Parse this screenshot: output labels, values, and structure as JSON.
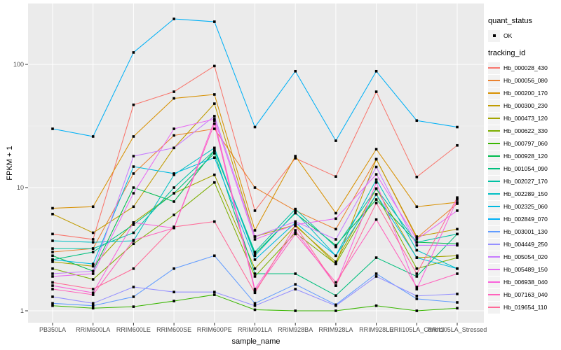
{
  "legend": {
    "quant_status_title": "quant_status",
    "ok_label": "OK",
    "tracking_id_title": "tracking_id"
  },
  "chart_data": {
    "type": "line",
    "title": "",
    "xlabel": "sample_name",
    "ylabel": "FPKM + 1",
    "y_scale": "log10",
    "y_ticks": [
      1,
      10,
      100
    ],
    "y_minor_ticks": [
      3.1623,
      31.623
    ],
    "ylim": [
      0.8,
      310
    ],
    "grid": "on",
    "legend_position": "right",
    "panel_color": "#EBEBEB",
    "grid_color": "#FFFFFF",
    "tick_label_color": "#4D4D4D",
    "marker": {
      "shape": "square",
      "color": "#000000",
      "meaning": "quant_status OK"
    },
    "categories": [
      "PB350LA",
      "RRIM600LA",
      "RRIM600LE",
      "RRIM600SE",
      "RRIM600PE",
      "RRIM901LA",
      "RRIM928BA",
      "RRIM928LA",
      "RRIM928LE",
      "RRII105LA_Control",
      "RRII105LA_Stressed"
    ],
    "series": [
      {
        "name": "Hb_000028_430",
        "color": "#F8766D",
        "values": [
          4.2,
          3.8,
          47,
          60,
          97,
          6.5,
          17.3,
          12.3,
          60,
          12.2,
          22
        ]
      },
      {
        "name": "Hb_000056_080",
        "color": "#EA8331",
        "values": [
          3.0,
          3.2,
          13,
          26.5,
          30,
          10,
          6.5,
          4.6,
          17,
          3.9,
          7.4
        ]
      },
      {
        "name": "Hb_000200_170",
        "color": "#D89000",
        "values": [
          6.8,
          7.0,
          26,
          53,
          57,
          4.5,
          18,
          6.2,
          20.5,
          7.0,
          7.6
        ]
      },
      {
        "name": "Hb_000300_230",
        "color": "#C09B00",
        "values": [
          6.1,
          4.3,
          7.0,
          21,
          48,
          4.0,
          5.0,
          2.4,
          17,
          4.0,
          4.6
        ]
      },
      {
        "name": "Hb_000473_120",
        "color": "#A3A500",
        "values": [
          2.5,
          2.3,
          5.2,
          9.0,
          12.7,
          2.2,
          4.9,
          2.5,
          9.8,
          2.7,
          2.8
        ]
      },
      {
        "name": "Hb_000622_330",
        "color": "#7CAE00",
        "values": [
          2.2,
          1.8,
          3.5,
          6.0,
          11,
          1.9,
          4.3,
          2.4,
          8.8,
          2.2,
          2.7
        ]
      },
      {
        "name": "Hb_000797_060",
        "color": "#39B600",
        "values": [
          1.1,
          1.05,
          1.08,
          1.2,
          1.35,
          1.02,
          1.0,
          1.0,
          1.1,
          1.0,
          1.05
        ]
      },
      {
        "name": "Hb_000928_120",
        "color": "#00BB4E",
        "values": [
          2.8,
          2.1,
          10,
          7.7,
          20,
          2.9,
          6.2,
          3.4,
          8.0,
          3.6,
          3.5
        ]
      },
      {
        "name": "Hb_001054_090",
        "color": "#00BF7D",
        "values": [
          2.6,
          3.0,
          5.0,
          9.0,
          19,
          2.0,
          2.0,
          1.33,
          2.7,
          1.9,
          4.2
        ]
      },
      {
        "name": "Hb_002027_170",
        "color": "#00C1A3",
        "values": [
          3.2,
          3.2,
          4.3,
          10,
          20,
          3.0,
          6.7,
          3.3,
          9.8,
          3.6,
          4.2
        ]
      },
      {
        "name": "Hb_002289_150",
        "color": "#00BFC4",
        "values": [
          3.7,
          3.6,
          3.7,
          12.7,
          21,
          2.8,
          6.3,
          2.8,
          11.6,
          3.1,
          2.2
        ]
      },
      {
        "name": "Hb_002325_060",
        "color": "#00BAE0",
        "values": [
          2.6,
          2.4,
          14.8,
          13,
          17.5,
          2.6,
          5.2,
          2.8,
          8.8,
          2.7,
          2.2
        ]
      },
      {
        "name": "Hb_002849_070",
        "color": "#00B0F6",
        "values": [
          30,
          26,
          125,
          234,
          222,
          31,
          88,
          24,
          88,
          35,
          31
        ]
      },
      {
        "name": "Hb_003001_130",
        "color": "#619CFF",
        "values": [
          1.15,
          1.1,
          1.3,
          2.2,
          2.8,
          1.15,
          1.64,
          1.12,
          2.0,
          1.25,
          1.17
        ]
      },
      {
        "name": "Hb_004449_250",
        "color": "#9590FF",
        "values": [
          1.3,
          1.15,
          1.56,
          1.42,
          1.42,
          1.1,
          1.5,
          1.1,
          1.9,
          1.32,
          1.37
        ]
      },
      {
        "name": "Hb_005054_020",
        "color": "#C77CFF",
        "values": [
          2.0,
          2.1,
          18,
          21,
          38,
          4.0,
          5.3,
          3.8,
          14.7,
          3.4,
          3.4
        ]
      },
      {
        "name": "Hb_005489_150",
        "color": "#E76BF3",
        "values": [
          1.9,
          2.0,
          9.0,
          30,
          36,
          3.8,
          5.0,
          5.6,
          12.8,
          3.8,
          6.5
        ]
      },
      {
        "name": "Hb_006938_040",
        "color": "#FA62DB",
        "values": [
          1.6,
          1.4,
          5.2,
          4.7,
          35,
          1.5,
          4.5,
          1.6,
          11,
          1.5,
          8.0
        ]
      },
      {
        "name": "Hb_007163_040",
        "color": "#FF62BC",
        "values": [
          1.5,
          1.35,
          3.75,
          4.7,
          33,
          1.45,
          4.2,
          1.7,
          5.5,
          1.56,
          2.0
        ]
      },
      {
        "name": "Hb_019654_110",
        "color": "#FF6A98",
        "values": [
          1.7,
          1.5,
          2.2,
          4.8,
          5.3,
          1.4,
          4.9,
          1.6,
          7.5,
          2.0,
          8.3
        ]
      }
    ]
  }
}
